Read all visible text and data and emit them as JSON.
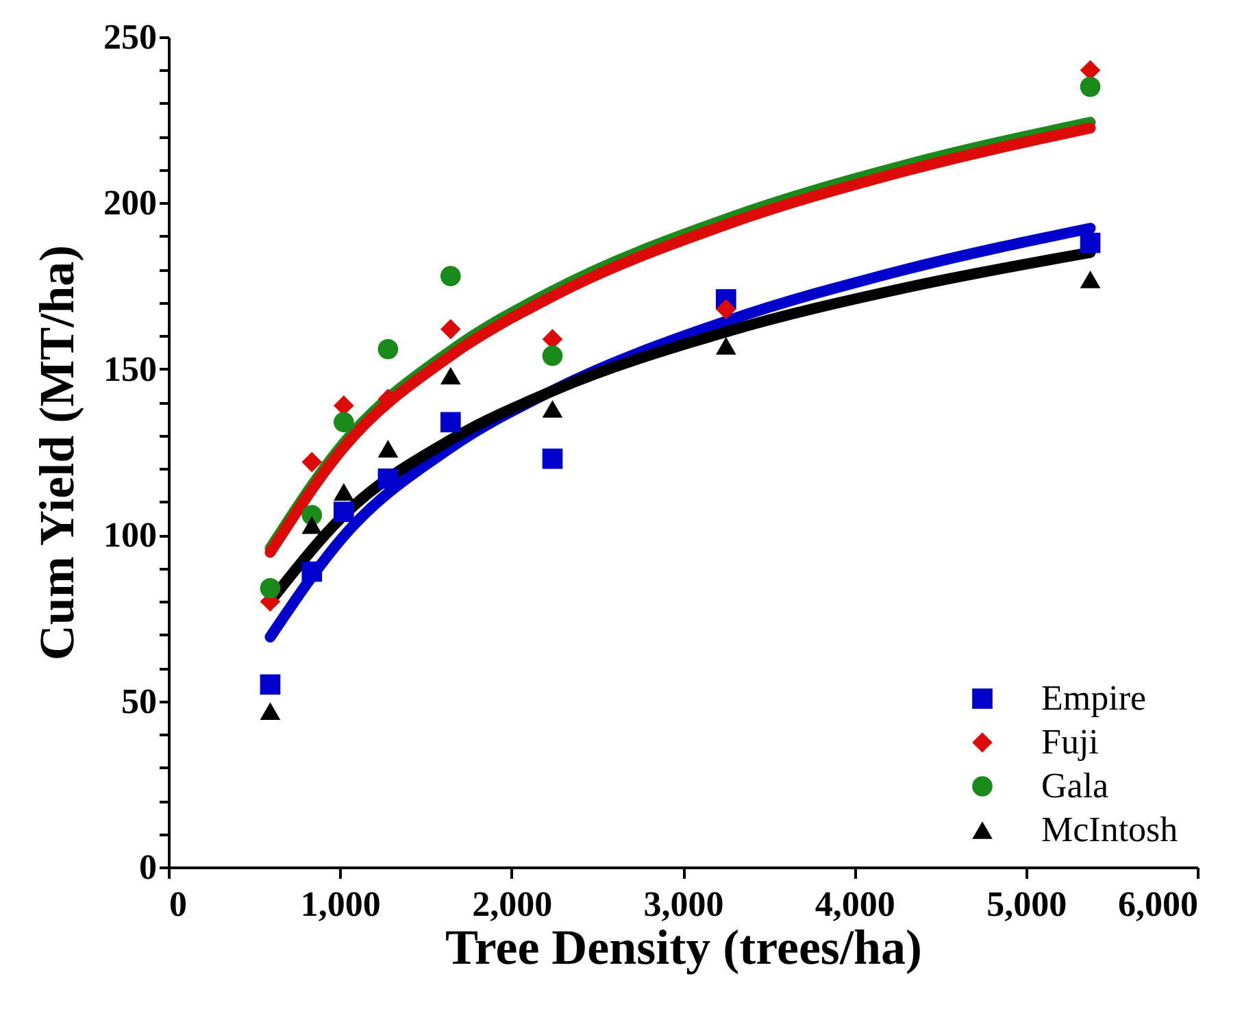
{
  "chart_data": {
    "type": "scatter",
    "xlabel": "Tree Density (trees/ha)",
    "ylabel": "Cum Yield (MT/ha)",
    "x": [
      593,
      836,
      1022,
      1280,
      1645,
      2239,
      3251,
      5375
    ],
    "series": [
      {
        "type": "line",
        "color": "#0000cc",
        "x": [
          593,
          1022,
          1645,
          2239,
          3251,
          4300,
          5375
        ],
        "values": [
          69.3,
          99.7,
          126.3,
          143.5,
          164.4,
          180,
          192.4
        ]
      },
      {
        "type": "line",
        "color": "#000000",
        "x": [
          593,
          1022,
          1645,
          2239,
          3251,
          4300,
          5375
        ],
        "values": [
          80,
          106,
          128.7,
          143.4,
          161.2,
          174.5,
          185.1
        ]
      },
      {
        "type": "line",
        "color": "#1a8a1a",
        "x": [
          593,
          1022,
          1645,
          2239,
          3251,
          4300,
          5375
        ],
        "values": [
          96,
          127.7,
          155.5,
          173.5,
          195.2,
          211.5,
          224.3
        ]
      },
      {
        "type": "line",
        "color": "#dd0a0a",
        "x": [
          593,
          1022,
          1645,
          2239,
          3251,
          4300,
          5375
        ],
        "values": [
          94.8,
          126.4,
          154,
          171.9,
          193.5,
          209.7,
          222.6
        ]
      },
      {
        "type": "scatter",
        "name": "Empire",
        "color": "#0000cc",
        "marker": "square",
        "values": [
          55,
          89,
          107,
          117,
          134,
          123,
          171,
          188
        ]
      },
      {
        "type": "scatter",
        "name": "Fuji",
        "color": "#dd0a0a",
        "marker": "diamond",
        "values": [
          80,
          122,
          139,
          141,
          162,
          159,
          168,
          240
        ]
      },
      {
        "type": "scatter",
        "name": "Gala",
        "color": "#1a8a1a",
        "marker": "circle",
        "values": [
          84,
          106,
          134,
          156,
          178,
          154,
          null,
          235
        ]
      },
      {
        "type": "scatter",
        "name": "McIntosh",
        "color": "#000000",
        "marker": "triangle",
        "values": [
          47,
          103,
          113,
          126,
          148,
          138,
          157,
          177
        ]
      }
    ],
    "xlim": [
      0,
      6000
    ],
    "ylim": [
      0,
      250
    ],
    "xticks": [
      0,
      {
        "value": 1000,
        "label": "1,000"
      },
      {
        "value": 2000,
        "label": "2,000"
      },
      {
        "value": 3000,
        "label": "3,000"
      },
      {
        "value": 4000,
        "label": "4,000"
      },
      {
        "value": 5000,
        "label": "5,000"
      },
      {
        "value": 6000,
        "label": "6,000"
      }
    ],
    "yticks": [
      0,
      {
        "value": 10,
        "label": null
      },
      {
        "value": 20,
        "label": null
      },
      {
        "value": 30,
        "label": null
      },
      {
        "value": 40,
        "label": null
      },
      50,
      {
        "value": 60,
        "label": null
      },
      {
        "value": 70,
        "label": null
      },
      {
        "value": 80,
        "label": null
      },
      {
        "value": 90,
        "label": null
      },
      100,
      {
        "value": 110,
        "label": null
      },
      {
        "value": 120,
        "label": null
      },
      {
        "value": 130,
        "label": null
      },
      {
        "value": 140,
        "label": null
      },
      150,
      {
        "value": 160,
        "label": null
      },
      {
        "value": 170,
        "label": null
      },
      {
        "value": 180,
        "label": null
      },
      {
        "value": 190,
        "label": null
      },
      200,
      {
        "value": 210,
        "label": null
      },
      {
        "value": 220,
        "label": null
      },
      {
        "value": 230,
        "label": null
      },
      {
        "value": 240,
        "label": null
      },
      250
    ],
    "grid": false,
    "legend": "bottom right"
  }
}
